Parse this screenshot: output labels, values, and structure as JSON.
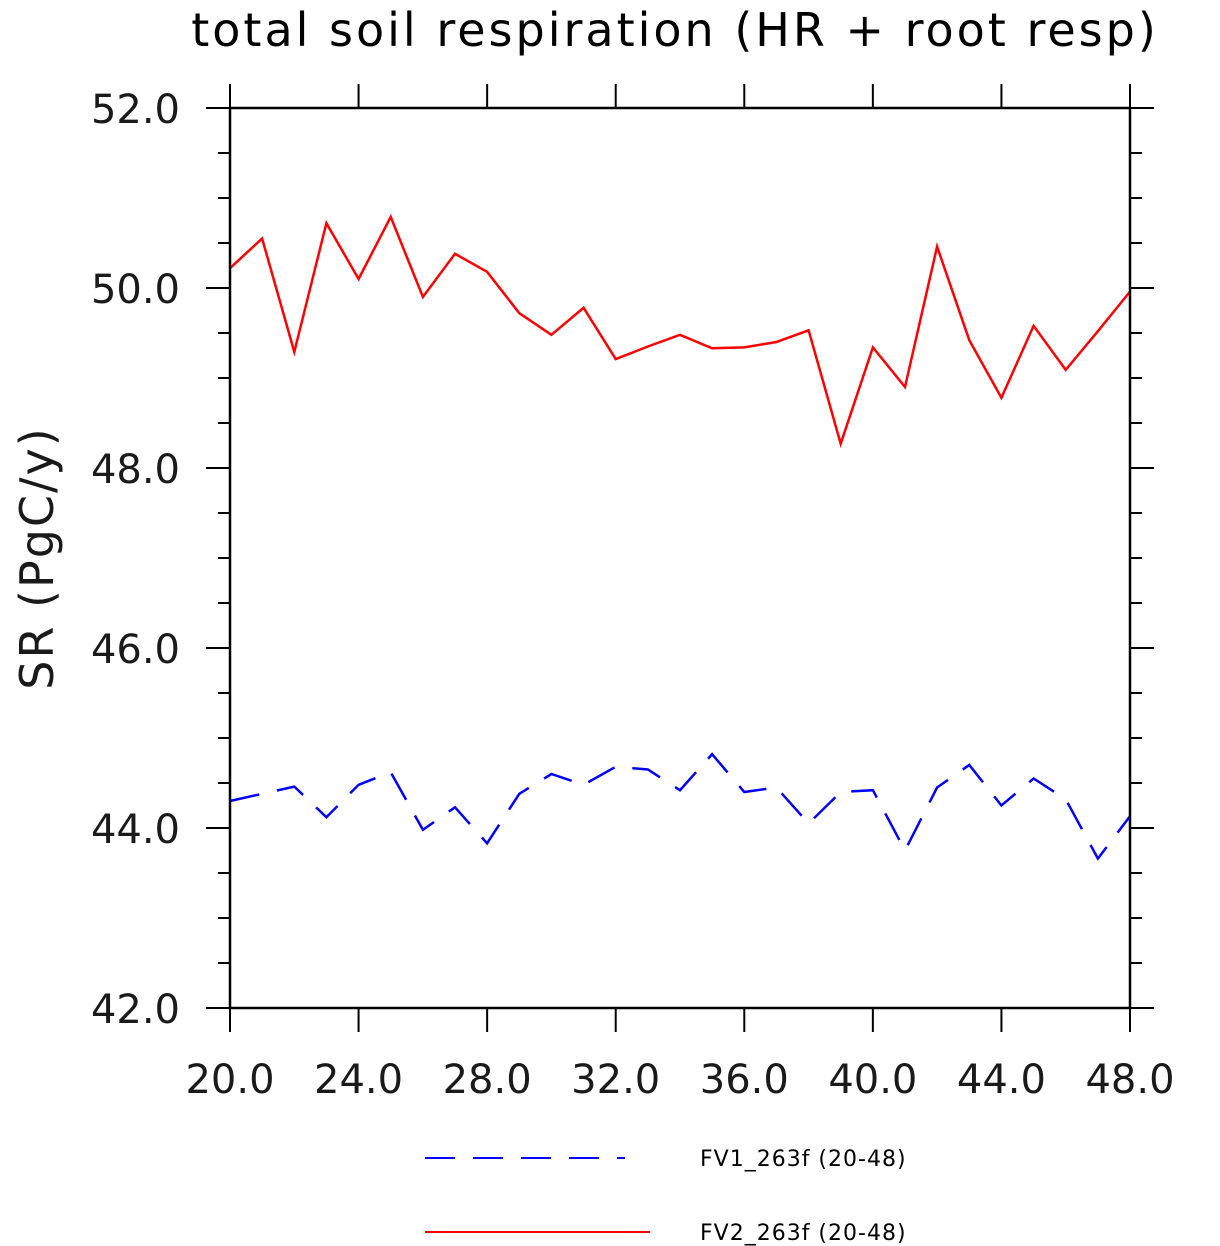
{
  "chart_data": {
    "type": "line",
    "title": "total soil respiration (HR + root resp)",
    "xlabel": "",
    "ylabel": "SR (PgC/y)",
    "xlim": [
      20,
      48
    ],
    "ylim": [
      42,
      52
    ],
    "xticks": [
      20,
      24,
      28,
      32,
      36,
      40,
      44,
      48
    ],
    "xtick_labels": [
      "20.0",
      "24.0",
      "28.0",
      "32.0",
      "36.0",
      "40.0",
      "44.0",
      "48.0"
    ],
    "yticks": [
      42,
      44,
      46,
      48,
      50,
      52
    ],
    "ytick_labels": [
      "42.0",
      "44.0",
      "46.0",
      "48.0",
      "50.0",
      "52.0"
    ],
    "grid": false,
    "legend_position": "bottom",
    "x": [
      20,
      21,
      22,
      23,
      24,
      25,
      26,
      27,
      28,
      29,
      30,
      31,
      32,
      33,
      34,
      35,
      36,
      37,
      38,
      39,
      40,
      41,
      42,
      43,
      44,
      45,
      46,
      47,
      48
    ],
    "series": [
      {
        "name": "FV1_263f (20-48)",
        "color": "#0000ff",
        "style": "dashed",
        "values": [
          44.3,
          44.38,
          44.46,
          44.12,
          44.48,
          44.62,
          43.98,
          44.23,
          43.83,
          44.38,
          44.6,
          44.48,
          44.68,
          44.65,
          44.42,
          44.82,
          44.4,
          44.45,
          44.05,
          44.4,
          44.42,
          43.75,
          44.45,
          44.7,
          44.25,
          44.55,
          44.32,
          43.66,
          44.13
        ]
      },
      {
        "name": "FV2_263f (20-48)",
        "color": "#ff0000",
        "style": "solid",
        "values": [
          50.22,
          50.55,
          49.29,
          50.72,
          50.1,
          50.79,
          49.9,
          50.38,
          50.18,
          49.72,
          49.48,
          49.78,
          49.21,
          49.35,
          49.48,
          49.33,
          49.34,
          49.4,
          49.53,
          48.27,
          49.34,
          48.9,
          50.46,
          49.42,
          48.78,
          49.58,
          49.09,
          49.52,
          49.96
        ]
      }
    ]
  }
}
